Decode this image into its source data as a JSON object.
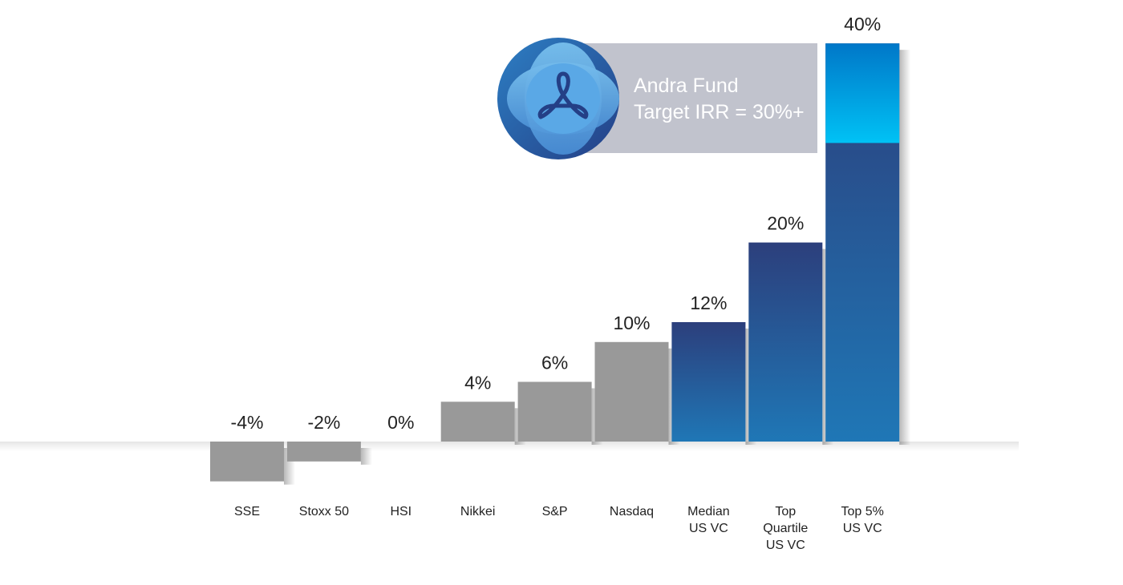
{
  "chart_data": {
    "type": "bar",
    "categories": [
      "SSE",
      "Stoxx 50",
      "HSI",
      "Nikkei",
      "S&P",
      "Nasdaq",
      "Median US VC",
      "Top Quartile US VC",
      "Top 5% US VC"
    ],
    "category_lines": [
      [
        "SSE"
      ],
      [
        "Stoxx 50"
      ],
      [
        "HSI"
      ],
      [
        "Nikkei"
      ],
      [
        "S&P"
      ],
      [
        "Nasdaq"
      ],
      [
        "Median",
        "US VC"
      ],
      [
        "Top",
        "Quartile",
        "US VC"
      ],
      [
        "Top 5%",
        "US VC"
      ]
    ],
    "values": [
      -4,
      -2,
      0,
      4,
      6,
      10,
      12,
      20,
      40
    ],
    "value_labels": [
      "-4%",
      "-2%",
      "0%",
      "4%",
      "6%",
      "10%",
      "12%",
      "20%",
      "40%"
    ],
    "bar_style": [
      "gray",
      "gray",
      "gray",
      "gray",
      "gray",
      "gray",
      "blue",
      "blue",
      "blue"
    ],
    "highlight": {
      "category": "Top 5% US VC",
      "from": 30,
      "to": 40
    },
    "ylim": [
      -4,
      40
    ],
    "grid": false,
    "legend": "none",
    "callout": {
      "line1": "Andra Fund",
      "line2": "Target IRR = 30%+",
      "logo": "andra-fund-logo"
    },
    "colors": {
      "gray": "#999999",
      "blue_top": "#2c3f7c",
      "blue_bottom": "#1f77b6",
      "highlight_top": "#0077c8",
      "highlight_bottom": "#00c2f5",
      "callout_bg": "#c1c3cd",
      "logo_outer": "#2866ad",
      "logo_inner": "#6fb4e6"
    }
  }
}
